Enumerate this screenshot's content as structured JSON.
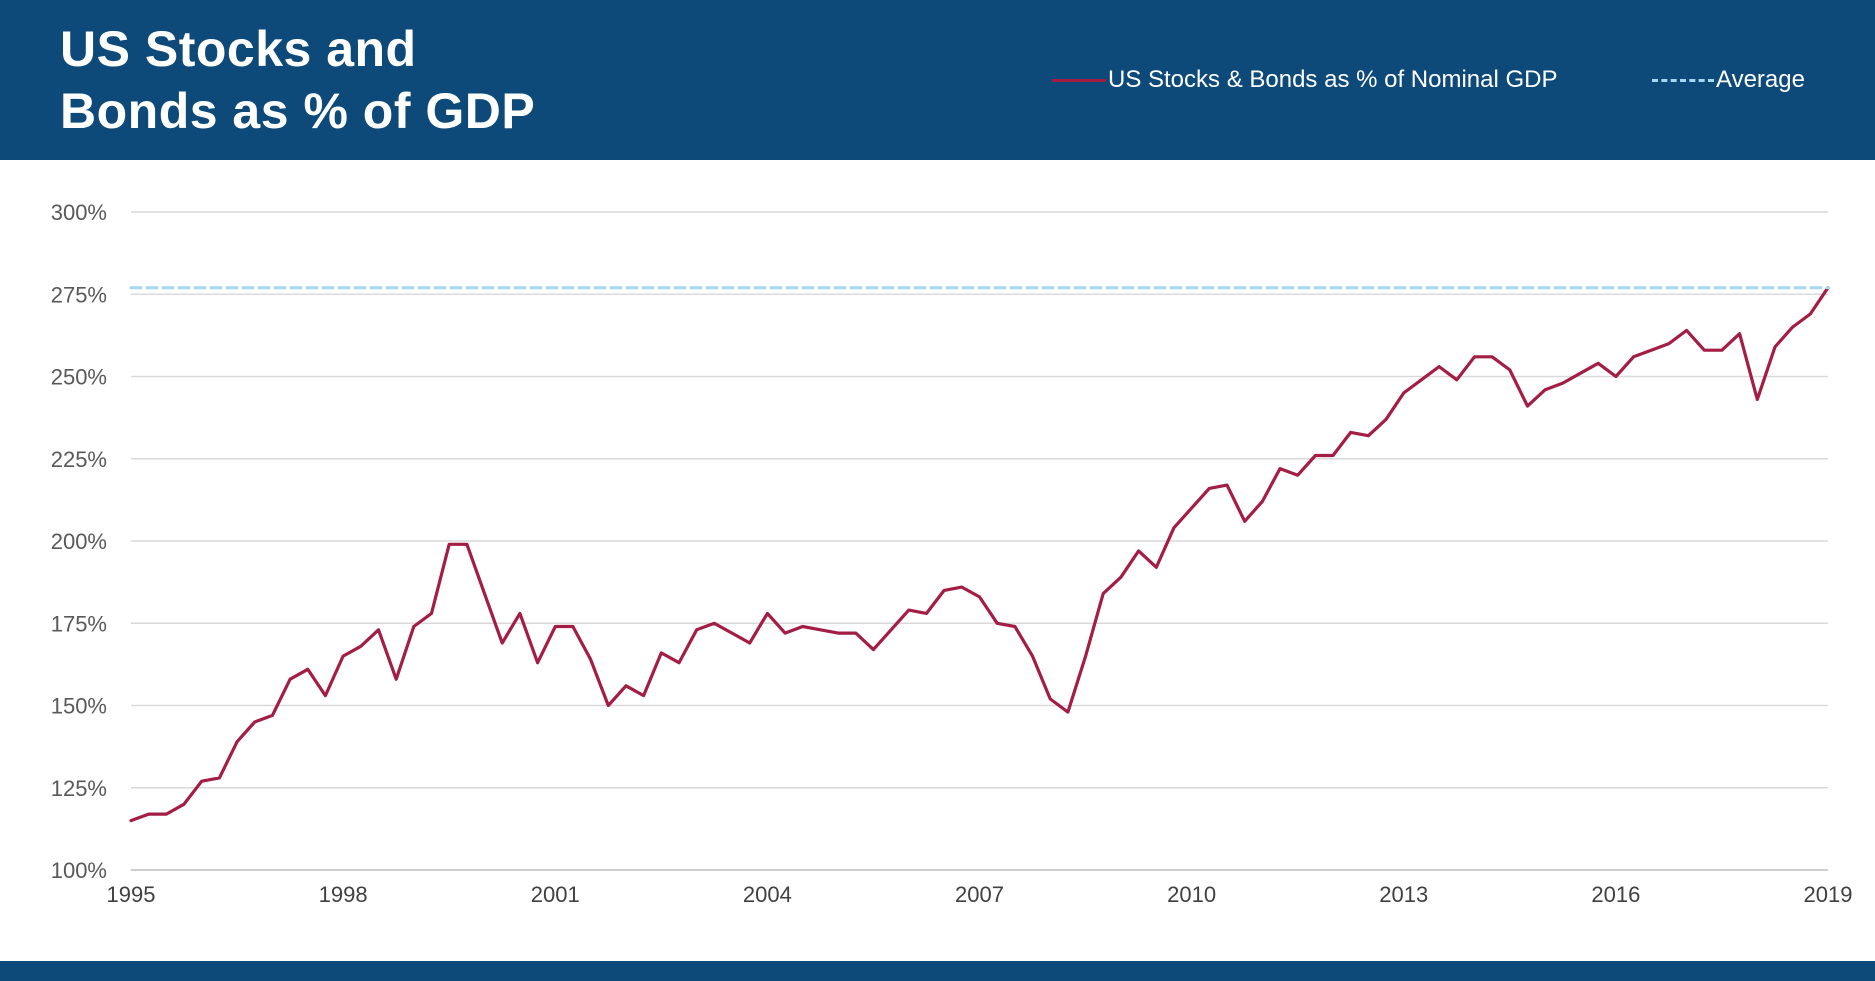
{
  "header": {
    "title_line1": "US Stocks and",
    "title_line2": "Bonds as % of GDP",
    "background_color": "#0d4a79"
  },
  "legend": {
    "series_label": "US Stocks & Bonds as % of Nominal GDP",
    "average_label": "Average"
  },
  "chart_data": {
    "type": "line",
    "title": "US Stocks and Bonds as % of GDP",
    "xlabel": "",
    "ylabel": "",
    "xlim": [
      1995,
      2019
    ],
    "ylim": [
      100,
      300
    ],
    "y_ticks": [
      100,
      125,
      150,
      175,
      200,
      225,
      250,
      275,
      300
    ],
    "y_tick_labels": [
      "100%",
      "125%",
      "150%",
      "175%",
      "200%",
      "225%",
      "250%",
      "275%",
      "300%"
    ],
    "x_ticks": [
      1995,
      1998,
      2001,
      2004,
      2007,
      2010,
      2013,
      2016,
      2019
    ],
    "x_tick_labels": [
      "1995",
      "1998",
      "2001",
      "2004",
      "2007",
      "2010",
      "2013",
      "2016",
      "2019"
    ],
    "grid": "horizontal",
    "series": [
      {
        "name": "US Stocks & Bonds as % of Nominal GDP",
        "color": "#a31d45",
        "style": "solid",
        "x": [
          1995,
          1995.25,
          1995.5,
          1995.75,
          1996,
          1996.25,
          1996.5,
          1996.75,
          1997,
          1997.25,
          1997.5,
          1997.75,
          1998,
          1998.25,
          1998.5,
          1998.75,
          1999,
          1999.25,
          1999.5,
          1999.75,
          2000,
          2000.25,
          2000.5,
          2000.75,
          2001,
          2001.25,
          2001.5,
          2001.75,
          2002,
          2002.25,
          2002.5,
          2002.75,
          2003,
          2003.25,
          2003.5,
          2003.75,
          2004,
          2004.25,
          2004.5,
          2004.75,
          2005,
          2005.25,
          2005.5,
          2005.75,
          2006,
          2006.25,
          2006.5,
          2006.75,
          2007,
          2007.25,
          2007.5,
          2007.75,
          2008,
          2008.25,
          2008.5,
          2008.75,
          2009,
          2009.25,
          2009.5,
          2009.75,
          2010,
          2010.25,
          2010.5,
          2010.75,
          2011,
          2011.25,
          2011.5,
          2011.75,
          2012,
          2012.25,
          2012.5,
          2012.75,
          2013,
          2013.25,
          2013.5,
          2013.75,
          2014,
          2014.25,
          2014.5,
          2014.75,
          2015,
          2015.25,
          2015.5,
          2015.75,
          2016,
          2016.25,
          2016.5,
          2016.75,
          2017,
          2017.25,
          2017.5,
          2017.75,
          2018,
          2018.25,
          2018.5,
          2018.75,
          2019
        ],
        "values": [
          115,
          117,
          117,
          120,
          127,
          128,
          139,
          145,
          147,
          158,
          161,
          153,
          165,
          168,
          173,
          158,
          174,
          178,
          199,
          199,
          184,
          169,
          178,
          163,
          174,
          174,
          164,
          150,
          156,
          153,
          166,
          163,
          173,
          175,
          172,
          169,
          178,
          172,
          174,
          173,
          172,
          172,
          167,
          173,
          179,
          178,
          185,
          186,
          183,
          175,
          174,
          165,
          152,
          148,
          165,
          184,
          189,
          197,
          192,
          204,
          210,
          216,
          217,
          206,
          212,
          222,
          220,
          226,
          226,
          233,
          232,
          237,
          245,
          249,
          253,
          249,
          256,
          256,
          252,
          241,
          246,
          248,
          251,
          254,
          250,
          256,
          258,
          260,
          264,
          258,
          258,
          263,
          243,
          259,
          265,
          269,
          277
        ]
      },
      {
        "name": "Average",
        "color": "#a6d8f0",
        "style": "dashed",
        "x": [
          1995,
          2019
        ],
        "values": [
          277,
          277
        ]
      }
    ]
  }
}
